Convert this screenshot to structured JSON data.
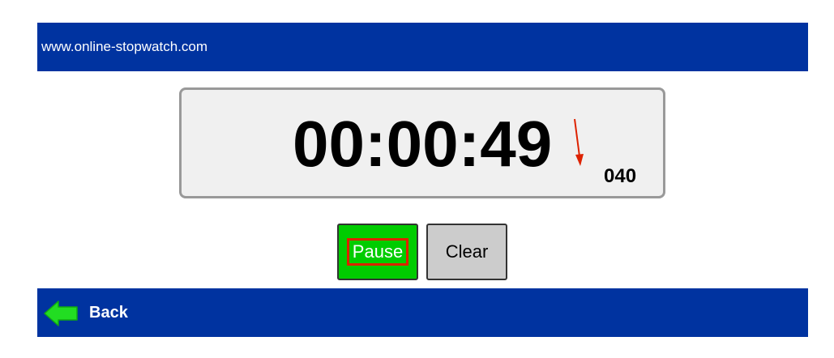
{
  "header": {
    "site_name": "www.online-stopwatch.com"
  },
  "stopwatch": {
    "time": "00:00:49",
    "milliseconds": "040"
  },
  "controls": {
    "pause_label": "Pause",
    "clear_label": "Clear"
  },
  "footer": {
    "back_label": "Back",
    "back_icon": "left-arrow-icon"
  },
  "colors": {
    "bar_blue": "#0033a0",
    "pause_green": "#00cc00",
    "clear_gray": "#cccccc",
    "back_arrow_green": "#22dd22",
    "annotation_red": "#dd2200"
  }
}
